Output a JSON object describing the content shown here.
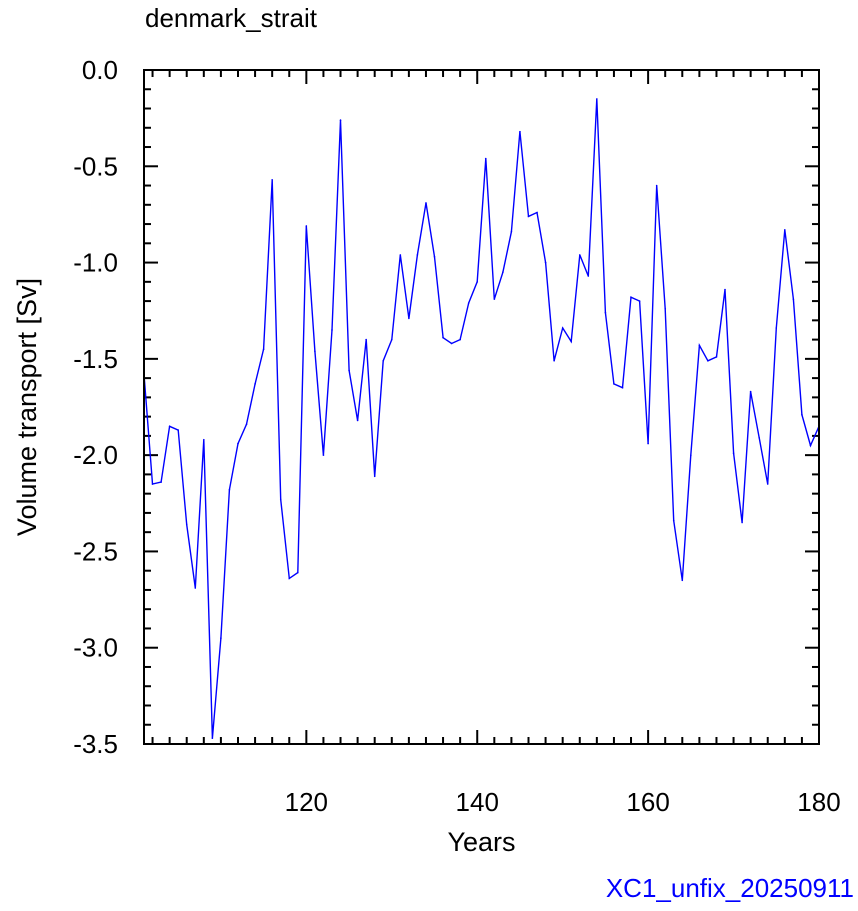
{
  "title": "denmark_strait",
  "footer_label": "XC1_unfix_20250911",
  "colors": {
    "series": "#0000ff",
    "axis": "#000000",
    "footer": "#0000ff"
  },
  "chart_data": {
    "type": "line",
    "title": "denmark_strait",
    "xlabel": "Years",
    "ylabel": "Volume transport [Sv]",
    "xlim": [
      101,
      180
    ],
    "ylim": [
      -3.5,
      0.0
    ],
    "xticks": [
      120,
      140,
      160,
      180
    ],
    "yticks": [
      0.0,
      -0.5,
      -1.0,
      -1.5,
      -2.0,
      -2.5,
      -3.0,
      -3.5
    ],
    "ytick_labels": [
      "0.0",
      "-0.5",
      "-1.0",
      "-1.5",
      "-2.0",
      "-2.5",
      "-3.0",
      "-3.5"
    ],
    "grid": false,
    "series": [
      {
        "color": "#0000ff",
        "x": [
          101,
          102,
          103,
          104,
          105,
          106,
          107,
          108,
          109,
          110,
          111,
          112,
          113,
          114,
          115,
          116,
          117,
          118,
          119,
          120,
          121,
          122,
          123,
          124,
          125,
          126,
          127,
          128,
          129,
          130,
          131,
          132,
          133,
          134,
          135,
          136,
          137,
          138,
          139,
          140,
          141,
          142,
          143,
          144,
          145,
          146,
          147,
          148,
          149,
          150,
          151,
          152,
          153,
          154,
          155,
          156,
          157,
          158,
          159,
          160,
          161,
          162,
          163,
          164,
          165,
          166,
          167,
          168,
          169,
          170,
          171,
          172,
          173,
          174,
          175,
          176,
          177,
          178,
          179,
          180
        ],
        "y": [
          -1.58,
          -2.15,
          -2.14,
          -1.85,
          -1.87,
          -2.36,
          -2.69,
          -1.92,
          -3.47,
          -2.95,
          -2.18,
          -1.94,
          -1.84,
          -1.63,
          -1.45,
          -0.57,
          -2.23,
          -2.64,
          -2.61,
          -0.81,
          -1.46,
          -2.0,
          -1.35,
          -0.26,
          -1.56,
          -1.82,
          -1.4,
          -2.11,
          -1.51,
          -1.4,
          -0.96,
          -1.29,
          -0.96,
          -0.69,
          -0.97,
          -1.39,
          -1.42,
          -1.4,
          -1.21,
          -1.1,
          -0.46,
          -1.19,
          -1.05,
          -0.84,
          -0.32,
          -0.76,
          -0.74,
          -1.0,
          -1.51,
          -1.34,
          -1.41,
          -0.96,
          -1.07,
          -0.15,
          -1.26,
          -1.63,
          -1.65,
          -1.18,
          -1.2,
          -1.94,
          -0.6,
          -1.24,
          -2.34,
          -2.65,
          -2.0,
          -1.43,
          -1.51,
          -1.49,
          -1.14,
          -1.99,
          -2.35,
          -1.67,
          -1.91,
          -2.15,
          -1.34,
          -0.83,
          -1.19,
          -1.79,
          -1.95,
          -1.85
        ]
      }
    ]
  }
}
